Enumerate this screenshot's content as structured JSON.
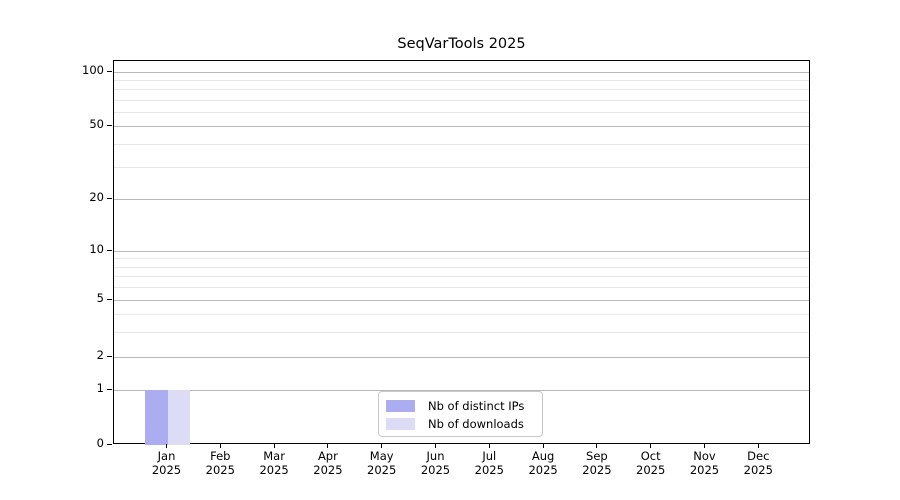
{
  "chart_data": {
    "type": "bar",
    "title": "SeqVarTools 2025",
    "categories": [
      "Jan 2025",
      "Feb 2025",
      "Mar 2025",
      "Apr 2025",
      "May 2025",
      "Jun 2025",
      "Jul 2025",
      "Aug 2025",
      "Sep 2025",
      "Oct 2025",
      "Nov 2025",
      "Dec 2025"
    ],
    "series": [
      {
        "name": "Nb of distinct IPs",
        "color": "#acacf0",
        "values": [
          1,
          0,
          0,
          0,
          0,
          0,
          0,
          0,
          0,
          0,
          0,
          0
        ]
      },
      {
        "name": "Nb of downloads",
        "color": "#dcdcf6",
        "values": [
          1,
          0,
          0,
          0,
          0,
          0,
          0,
          0,
          0,
          0,
          0,
          0
        ]
      }
    ],
    "y_ticks": [
      0,
      1,
      2,
      5,
      10,
      20,
      50,
      100
    ],
    "ylim": [
      0,
      100
    ],
    "yscale": "pseudo-log",
    "grid": true,
    "legend_position": "bottom-center",
    "colors": {
      "major_grid": "#b8b8b8",
      "minor_grid": "#e8e8e8",
      "axis": "#000000"
    }
  }
}
